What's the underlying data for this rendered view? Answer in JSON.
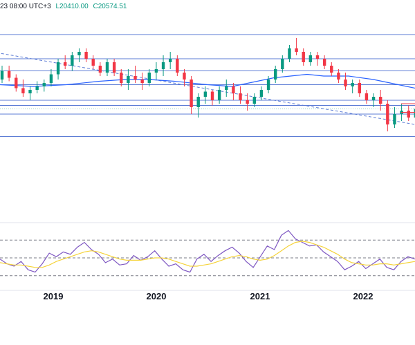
{
  "header": {
    "time_fragment": "23 08:00 UTC+3",
    "low_value": "L20410.00",
    "close_value": "C20574.51"
  },
  "colors": {
    "up": "#089981",
    "down": "#f23645",
    "level_line": "#5b7bd5",
    "trend_line": "#5b7bd5",
    "moving_average": "#2962ff",
    "rsi_line": "#7e57c2",
    "rsi_ma": "#f5d33a",
    "rsi_band": "#787b86",
    "separator": "#e0e3eb"
  },
  "chart_data": [
    {
      "type": "candlestick",
      "title": "",
      "x_ticks": [
        "2019",
        "2020",
        "2021",
        "2022"
      ],
      "y_range_relative": [
        0,
        100
      ],
      "horizontal_levels_relative": [
        96,
        82,
        75,
        67,
        58,
        55,
        50,
        37
      ],
      "trend_line_relative": {
        "from": [
          -0.02,
          86
        ],
        "to": [
          1.0,
          44
        ]
      },
      "moving_average_relative": [
        [
          0.0,
          67
        ],
        [
          0.08,
          66
        ],
        [
          0.16,
          67
        ],
        [
          0.24,
          69
        ],
        [
          0.3,
          70
        ],
        [
          0.36,
          70
        ],
        [
          0.42,
          69
        ],
        [
          0.5,
          67
        ],
        [
          0.56,
          66
        ],
        [
          0.62,
          69
        ],
        [
          0.66,
          71
        ],
        [
          0.7,
          72
        ],
        [
          0.74,
          73
        ],
        [
          0.78,
          72
        ],
        [
          0.84,
          72
        ],
        [
          0.9,
          70
        ],
        [
          0.96,
          67
        ],
        [
          1.0,
          65
        ]
      ],
      "candles_relative": [
        [
          70,
          78,
          68,
          75
        ],
        [
          75,
          78,
          69,
          71
        ],
        [
          71,
          73,
          63,
          65
        ],
        [
          65,
          70,
          60,
          62
        ],
        [
          62,
          66,
          58,
          64
        ],
        [
          64,
          69,
          62,
          66
        ],
        [
          66,
          70,
          63,
          68
        ],
        [
          68,
          76,
          66,
          73
        ],
        [
          73,
          82,
          70,
          80
        ],
        [
          80,
          84,
          76,
          78
        ],
        [
          78,
          86,
          75,
          84
        ],
        [
          84,
          88,
          80,
          86
        ],
        [
          86,
          88,
          80,
          82
        ],
        [
          82,
          84,
          76,
          78
        ],
        [
          78,
          80,
          72,
          74
        ],
        [
          74,
          82,
          72,
          80
        ],
        [
          80,
          82,
          72,
          74
        ],
        [
          74,
          76,
          66,
          68
        ],
        [
          68,
          76,
          64,
          72
        ],
        [
          72,
          78,
          68,
          70
        ],
        [
          70,
          74,
          64,
          68
        ],
        [
          68,
          76,
          66,
          74
        ],
        [
          74,
          80,
          70,
          76
        ],
        [
          76,
          84,
          72,
          80
        ],
        [
          80,
          86,
          76,
          82
        ],
        [
          82,
          84,
          72,
          74
        ],
        [
          74,
          76,
          66,
          70
        ],
        [
          70,
          72,
          50,
          54
        ],
        [
          54,
          62,
          48,
          60
        ],
        [
          60,
          66,
          56,
          63
        ],
        [
          63,
          64,
          55,
          58
        ],
        [
          58,
          66,
          56,
          64
        ],
        [
          64,
          70,
          60,
          66
        ],
        [
          66,
          68,
          58,
          62
        ],
        [
          62,
          66,
          56,
          58
        ],
        [
          58,
          62,
          52,
          56
        ],
        [
          56,
          62,
          54,
          60
        ],
        [
          60,
          66,
          58,
          64
        ],
        [
          64,
          72,
          62,
          70
        ],
        [
          70,
          78,
          68,
          76
        ],
        [
          76,
          84,
          74,
          82
        ],
        [
          82,
          90,
          80,
          88
        ],
        [
          88,
          94,
          84,
          86
        ],
        [
          86,
          88,
          78,
          80
        ],
        [
          80,
          86,
          78,
          84
        ],
        [
          84,
          86,
          78,
          82
        ],
        [
          82,
          84,
          76,
          78
        ],
        [
          78,
          80,
          72,
          74
        ],
        [
          74,
          76,
          68,
          70
        ],
        [
          70,
          74,
          64,
          66
        ],
        [
          66,
          70,
          62,
          68
        ],
        [
          68,
          70,
          60,
          62
        ],
        [
          62,
          64,
          56,
          58
        ],
        [
          58,
          62,
          54,
          60
        ],
        [
          60,
          64,
          52,
          56
        ],
        [
          56,
          58,
          40,
          44
        ],
        [
          44,
          54,
          42,
          50
        ],
        [
          50,
          56,
          46,
          52
        ],
        [
          52,
          55,
          46,
          48
        ],
        [
          48,
          54,
          46,
          53
        ]
      ]
    },
    {
      "type": "line",
      "title": "",
      "y_range_relative": [
        0,
        100
      ],
      "bands_relative": [
        80,
        50,
        20
      ],
      "series": [
        {
          "values": [
            48,
            40,
            36,
            44,
            30,
            26,
            40,
            58,
            52,
            60,
            56,
            68,
            76,
            64,
            56,
            42,
            48,
            38,
            40,
            54,
            46,
            52,
            62,
            48,
            36,
            40,
            30,
            26,
            48,
            56,
            44,
            54,
            62,
            68,
            58,
            44,
            34,
            52,
            70,
            64,
            88,
            96,
            82,
            76,
            70,
            72,
            60,
            52,
            44,
            30,
            36,
            44,
            32,
            40,
            48,
            34,
            30,
            44,
            52,
            48
          ]
        },
        {
          "values": [
            42,
            40,
            38,
            38,
            36,
            34,
            34,
            38,
            44,
            48,
            52,
            56,
            60,
            62,
            60,
            56,
            52,
            48,
            46,
            46,
            46,
            48,
            50,
            50,
            48,
            44,
            40,
            36,
            36,
            38,
            40,
            44,
            48,
            52,
            54,
            52,
            48,
            46,
            48,
            54,
            62,
            70,
            76,
            78,
            76,
            72,
            68,
            62,
            56,
            48,
            42,
            40,
            38,
            38,
            40,
            40,
            38,
            40,
            42,
            44
          ]
        }
      ]
    }
  ]
}
